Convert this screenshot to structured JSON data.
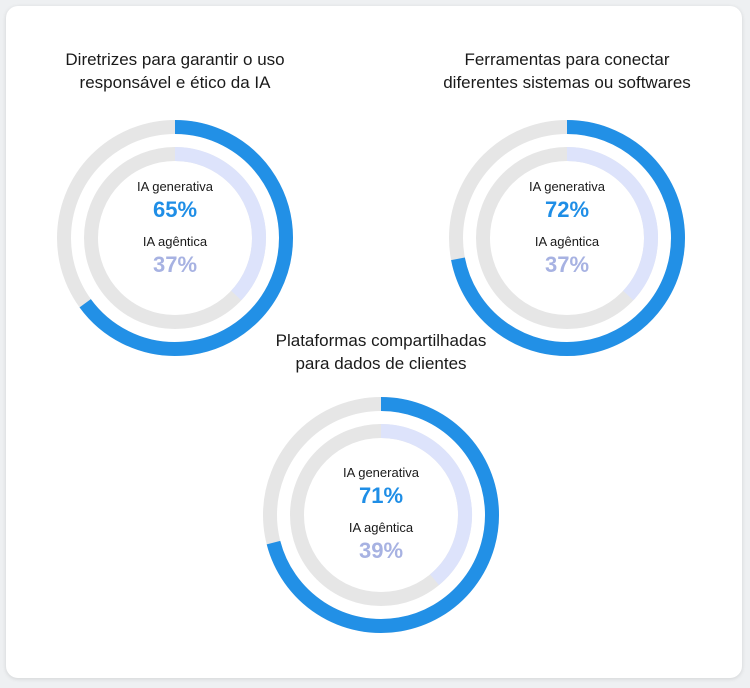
{
  "colors": {
    "outer_fill": "#2290e6",
    "outer_track": "#e6e6e6",
    "inner_fill": "#dde3fb",
    "inner_track": "#e6e6e6",
    "pct_generative": "#1f8ee6",
    "pct_agentic": "#a7b2e2"
  },
  "chart_data": [
    {
      "type": "pie",
      "title_lines": [
        "Diretrizes para garantir o uso",
        "responsável e ético da IA"
      ],
      "series": [
        {
          "name": "IA generativa",
          "value": 65,
          "label": "65%"
        },
        {
          "name": "IA agêntica",
          "value": 37,
          "label": "37%"
        }
      ]
    },
    {
      "type": "pie",
      "title_lines": [
        "Ferramentas para conectar",
        "diferentes sistemas ou softwares"
      ],
      "series": [
        {
          "name": "IA generativa",
          "value": 72,
          "label": "72%"
        },
        {
          "name": "IA agêntica",
          "value": 37,
          "label": "37%"
        }
      ]
    },
    {
      "type": "pie",
      "title_lines": [
        "Plataformas compartilhadas",
        "para dados de clientes"
      ],
      "series": [
        {
          "name": "IA generativa",
          "value": 71,
          "label": "71%"
        },
        {
          "name": "IA agêntica",
          "value": 39,
          "label": "39%"
        }
      ]
    }
  ]
}
